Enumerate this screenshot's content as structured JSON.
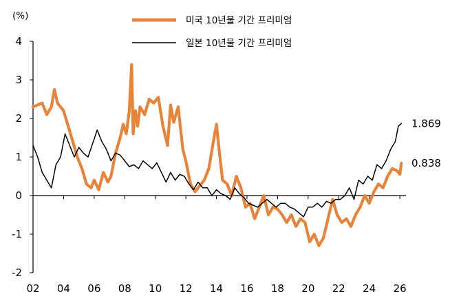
{
  "chart_data": {
    "type": "line",
    "unit_label": "(%)",
    "xlabel": "",
    "ylabel": "",
    "xlim": [
      2002,
      2026.4
    ],
    "ylim": [
      -2,
      4
    ],
    "yticks": [
      4,
      3,
      2,
      1,
      0,
      -1,
      -2
    ],
    "xtick_labels": [
      "02",
      "04",
      "06",
      "08",
      "10",
      "12",
      "14",
      "16",
      "18",
      "20",
      "22",
      "24",
      "26"
    ],
    "xtick_values": [
      2002,
      2004,
      2006,
      2008,
      2010,
      2012,
      2014,
      2016,
      2018,
      2020,
      2022,
      2024,
      2026
    ],
    "grid": false,
    "legend_position": "top",
    "series": [
      {
        "name": "미국 10년물 기간 프리미엄",
        "color": "#E8843A",
        "end_label": "0.838",
        "x": [
          2002.0,
          2002.3,
          2002.6,
          2002.9,
          2003.2,
          2003.4,
          2003.6,
          2003.8,
          2004.0,
          2004.3,
          2004.6,
          2004.9,
          2005.2,
          2005.5,
          2005.8,
          2006.0,
          2006.3,
          2006.6,
          2006.9,
          2007.1,
          2007.4,
          2007.7,
          2007.9,
          2008.1,
          2008.3,
          2008.45,
          2008.55,
          2008.7,
          2008.85,
          2009.0,
          2009.3,
          2009.6,
          2009.9,
          2010.2,
          2010.5,
          2010.8,
          2011.0,
          2011.2,
          2011.5,
          2011.8,
          2012.0,
          2012.3,
          2012.6,
          2012.9,
          2013.2,
          2013.5,
          2013.8,
          2014.0,
          2014.2,
          2014.4,
          2014.7,
          2015.0,
          2015.3,
          2015.6,
          2015.9,
          2016.2,
          2016.5,
          2016.8,
          2017.1,
          2017.4,
          2017.7,
          2018.0,
          2018.3,
          2018.6,
          2018.9,
          2019.2,
          2019.5,
          2019.8,
          2020.1,
          2020.4,
          2020.7,
          2021.0,
          2021.3,
          2021.6,
          2021.9,
          2022.2,
          2022.5,
          2022.8,
          2023.1,
          2023.4,
          2023.7,
          2024.0,
          2024.3,
          2024.6,
          2024.9,
          2025.2,
          2025.5,
          2025.8,
          2026.0,
          2026.1
        ],
        "y": [
          2.3,
          2.35,
          2.4,
          2.1,
          2.3,
          2.75,
          2.4,
          2.3,
          2.2,
          1.8,
          1.4,
          1.0,
          0.7,
          0.3,
          0.2,
          0.4,
          0.15,
          0.6,
          0.35,
          0.5,
          1.1,
          1.5,
          1.85,
          1.6,
          2.2,
          3.4,
          1.6,
          2.2,
          1.8,
          2.3,
          2.1,
          2.5,
          2.4,
          2.55,
          1.8,
          1.3,
          2.35,
          1.9,
          2.3,
          1.2,
          0.9,
          0.3,
          0.1,
          0.25,
          0.4,
          0.7,
          1.4,
          1.85,
          1.1,
          0.4,
          0.3,
          0.0,
          0.5,
          0.2,
          -0.3,
          -0.2,
          -0.6,
          -0.3,
          0.0,
          -0.5,
          -0.3,
          -0.35,
          -0.5,
          -0.7,
          -0.5,
          -0.8,
          -0.6,
          -0.7,
          -1.2,
          -1.0,
          -1.3,
          -1.1,
          -0.6,
          -0.1,
          -0.5,
          -0.7,
          -0.6,
          -0.8,
          -0.5,
          -0.3,
          0.0,
          -0.2,
          0.1,
          0.3,
          0.2,
          0.5,
          0.7,
          0.65,
          0.55,
          0.838
        ]
      },
      {
        "name": "일본 10년물 기간 프리미엄",
        "color": "#000000",
        "end_label": "1.869",
        "x": [
          2002.0,
          2002.3,
          2002.6,
          2002.9,
          2003.2,
          2003.5,
          2003.8,
          2004.1,
          2004.4,
          2004.7,
          2005.0,
          2005.3,
          2005.6,
          2005.9,
          2006.2,
          2006.5,
          2006.8,
          2007.1,
          2007.4,
          2007.7,
          2008.0,
          2008.3,
          2008.6,
          2008.9,
          2009.2,
          2009.5,
          2009.8,
          2010.1,
          2010.4,
          2010.7,
          2011.0,
          2011.3,
          2011.6,
          2011.9,
          2012.2,
          2012.5,
          2012.8,
          2013.1,
          2013.4,
          2013.7,
          2014.0,
          2014.3,
          2014.6,
          2014.9,
          2015.2,
          2015.5,
          2015.8,
          2016.1,
          2016.4,
          2016.7,
          2017.0,
          2017.3,
          2017.6,
          2017.9,
          2018.2,
          2018.5,
          2018.8,
          2019.1,
          2019.4,
          2019.7,
          2020.0,
          2020.3,
          2020.6,
          2020.9,
          2021.2,
          2021.5,
          2021.8,
          2022.1,
          2022.4,
          2022.7,
          2023.0,
          2023.3,
          2023.6,
          2023.9,
          2024.2,
          2024.5,
          2024.8,
          2025.1,
          2025.4,
          2025.7,
          2025.9,
          2026.1
        ],
        "y": [
          1.3,
          1.0,
          0.6,
          0.4,
          0.2,
          0.8,
          1.0,
          1.6,
          1.3,
          1.0,
          1.25,
          1.1,
          1.0,
          1.35,
          1.7,
          1.4,
          1.2,
          0.9,
          1.1,
          1.05,
          0.9,
          0.75,
          0.8,
          0.7,
          0.9,
          0.8,
          0.7,
          0.85,
          0.6,
          0.35,
          0.6,
          0.4,
          0.55,
          0.5,
          0.3,
          0.15,
          0.35,
          0.2,
          0.2,
          0.0,
          0.15,
          0.05,
          0.0,
          -0.1,
          0.2,
          0.05,
          -0.05,
          -0.2,
          -0.25,
          -0.3,
          -0.2,
          -0.1,
          -0.2,
          -0.3,
          -0.2,
          -0.2,
          -0.3,
          -0.35,
          -0.45,
          -0.55,
          -0.3,
          -0.3,
          -0.2,
          -0.3,
          -0.15,
          -0.2,
          -0.1,
          -0.1,
          0.0,
          0.2,
          -0.1,
          0.4,
          0.3,
          0.5,
          0.4,
          0.8,
          0.7,
          0.9,
          1.2,
          1.4,
          1.8,
          1.869
        ]
      }
    ]
  }
}
